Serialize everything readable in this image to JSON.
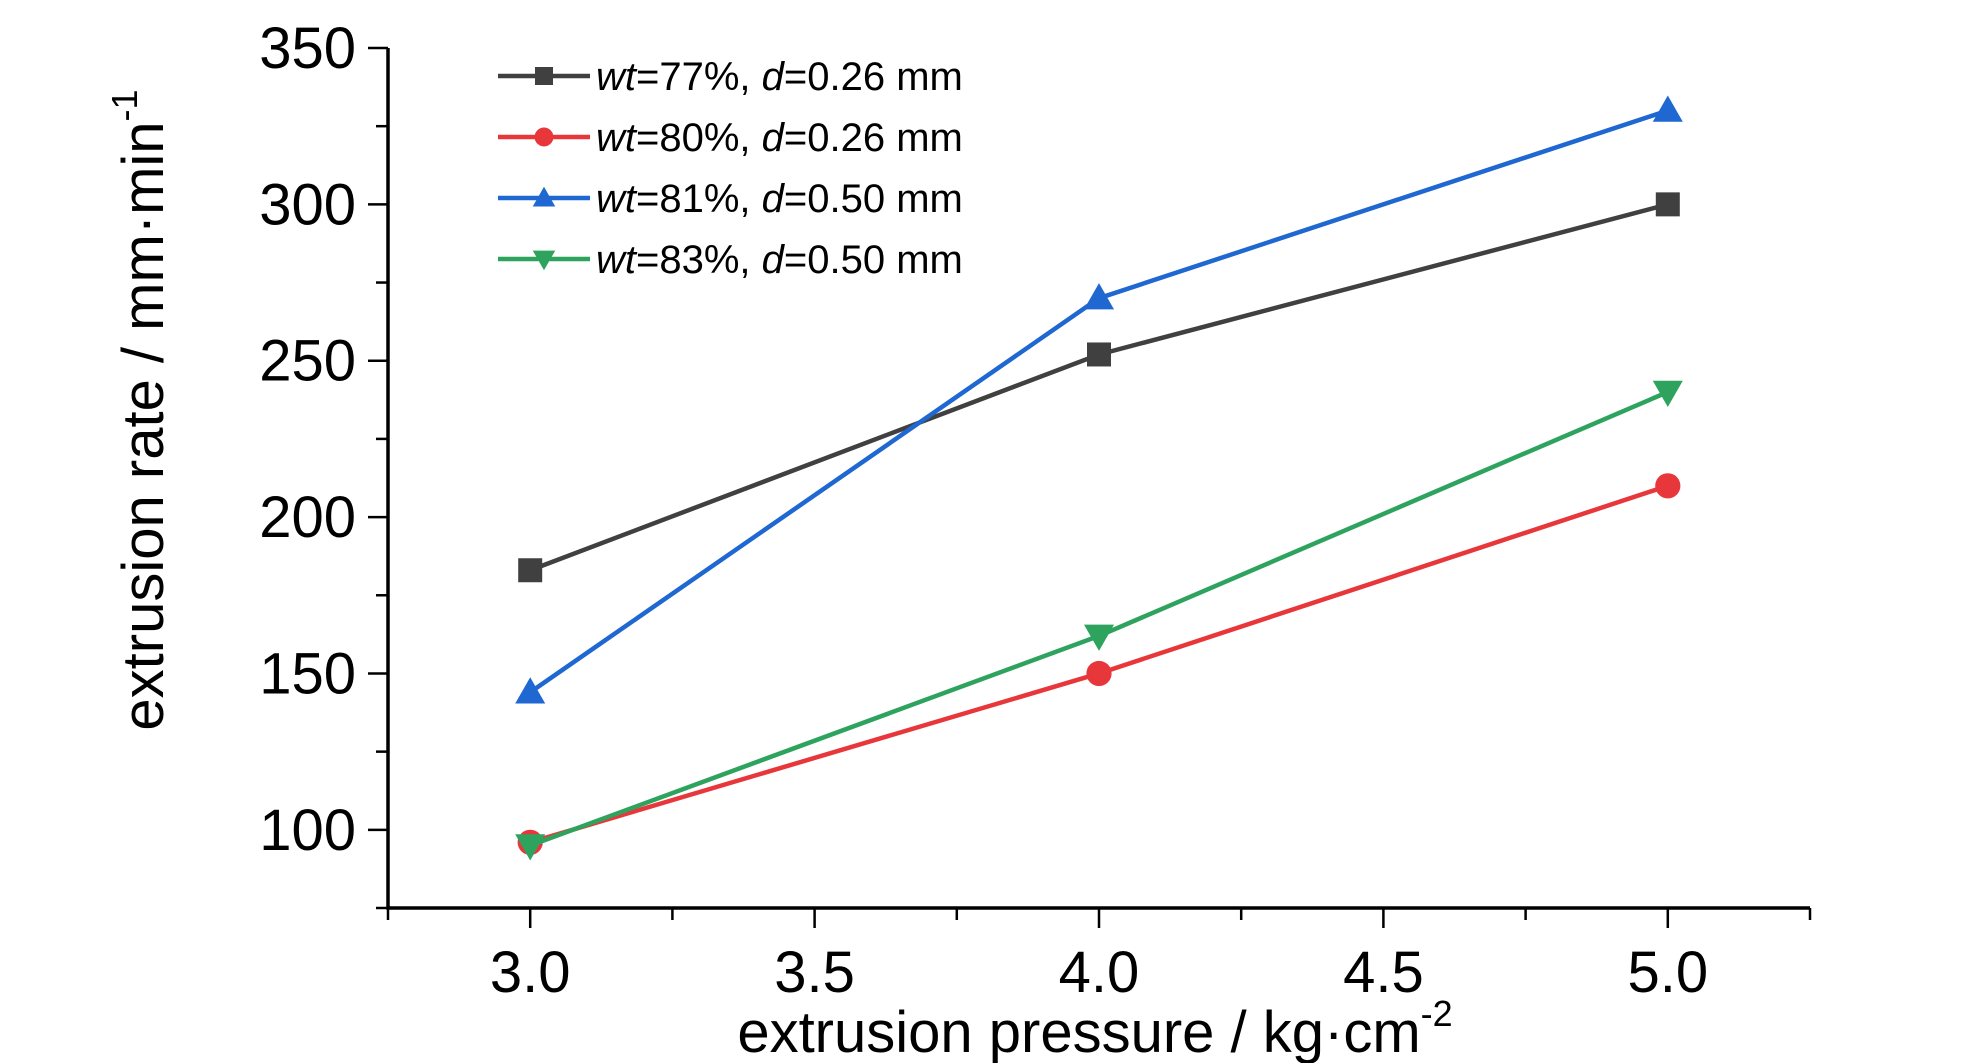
{
  "chart_data": {
    "type": "line",
    "x": [
      3.0,
      4.0,
      5.0
    ],
    "xlim": [
      2.75,
      5.25
    ],
    "ylim": [
      75,
      350
    ],
    "xticks": [
      3.0,
      3.5,
      4.0,
      4.5,
      5.0
    ],
    "xtick_labels": [
      "3.0",
      "3.5",
      "4.0",
      "4.5",
      "5.0"
    ],
    "xminor": [
      2.75,
      3.25,
      3.75,
      4.25,
      4.75,
      5.25
    ],
    "yticks": [
      100,
      150,
      200,
      250,
      300,
      350
    ],
    "ytick_labels": [
      "100",
      "150",
      "200",
      "250",
      "300",
      "350"
    ],
    "yminor": [
      75,
      125,
      175,
      225,
      275,
      325
    ],
    "xlabel": {
      "text": "extrusion pressure / kg·cm",
      "sup": "-2"
    },
    "ylabel": {
      "text": "extrusion rate / mm·min",
      "sup": "-1"
    },
    "legend_position": "top-left",
    "series": [
      {
        "name": "wt=77%, d=0.26 mm",
        "label_parts": {
          "v1": "wt",
          "t1": "=77%, ",
          "v2": "d",
          "t2": "=0.26 mm"
        },
        "color": "#404040",
        "marker": "square",
        "values": [
          183,
          252,
          300
        ]
      },
      {
        "name": "wt=80%, d=0.26 mm",
        "label_parts": {
          "v1": "wt",
          "t1": "=80%, ",
          "v2": "d",
          "t2": "=0.26 mm"
        },
        "color": "#e8373b",
        "marker": "circle",
        "values": [
          96,
          150,
          210
        ]
      },
      {
        "name": "wt=81%, d=0.50 mm",
        "label_parts": {
          "v1": "wt",
          "t1": "=81%, ",
          "v2": "d",
          "t2": "=0.50 mm"
        },
        "color": "#1f67d1",
        "marker": "triangle-up",
        "values": [
          144,
          270,
          330
        ]
      },
      {
        "name": "wt=83%, d=0.50 mm",
        "label_parts": {
          "v1": "wt",
          "t1": "=83%, ",
          "v2": "d",
          "t2": "=0.50 mm"
        },
        "color": "#2ea35e",
        "marker": "triangle-down",
        "values": [
          95,
          162,
          240
        ]
      }
    ]
  }
}
